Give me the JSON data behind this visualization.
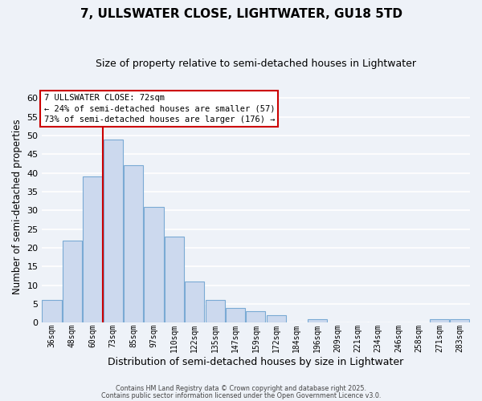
{
  "title": "7, ULLSWATER CLOSE, LIGHTWATER, GU18 5TD",
  "subtitle": "Size of property relative to semi-detached houses in Lightwater",
  "xlabel": "Distribution of semi-detached houses by size in Lightwater",
  "ylabel": "Number of semi-detached properties",
  "bar_labels": [
    "36sqm",
    "48sqm",
    "60sqm",
    "73sqm",
    "85sqm",
    "97sqm",
    "110sqm",
    "122sqm",
    "135sqm",
    "147sqm",
    "159sqm",
    "172sqm",
    "184sqm",
    "196sqm",
    "209sqm",
    "221sqm",
    "234sqm",
    "246sqm",
    "258sqm",
    "271sqm",
    "283sqm"
  ],
  "bar_values": [
    6,
    22,
    39,
    49,
    42,
    31,
    23,
    11,
    6,
    4,
    3,
    2,
    0,
    1,
    0,
    0,
    0,
    0,
    0,
    1,
    1
  ],
  "bar_color": "#ccd9ee",
  "bar_edge_color": "#7aaad4",
  "vline_x_idx": 3,
  "vline_color": "#cc0000",
  "annotation_title": "7 ULLSWATER CLOSE: 72sqm",
  "annotation_line1": "← 24% of semi-detached houses are smaller (57)",
  "annotation_line2": "73% of semi-detached houses are larger (176) →",
  "annotation_box_color": "#ffffff",
  "annotation_box_edge": "#cc0000",
  "ylim": [
    0,
    62
  ],
  "yticks": [
    0,
    5,
    10,
    15,
    20,
    25,
    30,
    35,
    40,
    45,
    50,
    55,
    60
  ],
  "footer1": "Contains HM Land Registry data © Crown copyright and database right 2025.",
  "footer2": "Contains public sector information licensed under the Open Government Licence v3.0.",
  "background_color": "#eef2f8",
  "grid_color": "#ffffff",
  "title_fontsize": 11,
  "subtitle_fontsize": 9
}
